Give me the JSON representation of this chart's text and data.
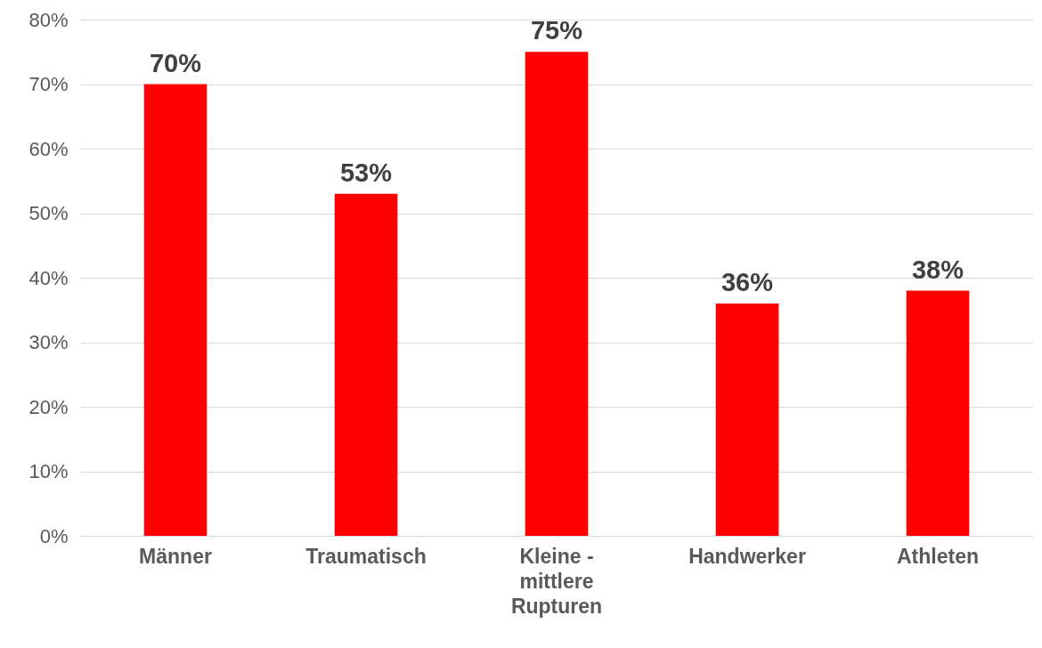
{
  "chart_data": {
    "type": "bar",
    "categories": [
      "Männer",
      "Traumatisch",
      "Kleine - mittlere Rupturen",
      "Handwerker",
      "Athleten"
    ],
    "values": [
      70,
      53,
      75,
      36,
      38
    ],
    "value_labels": [
      "70%",
      "53%",
      "75%",
      "36%",
      "38%"
    ],
    "color": "#ff0000",
    "ylim": [
      0,
      80
    ],
    "yticks": [
      {
        "value": 0,
        "label": "0%"
      },
      {
        "value": 10,
        "label": "10%"
      },
      {
        "value": 20,
        "label": "20%"
      },
      {
        "value": 30,
        "label": "30%"
      },
      {
        "value": 40,
        "label": "40%"
      },
      {
        "value": 50,
        "label": "50%"
      },
      {
        "value": 60,
        "label": "60%"
      },
      {
        "value": 70,
        "label": "70%"
      },
      {
        "value": 80,
        "label": "80%"
      }
    ],
    "grid": "y"
  }
}
